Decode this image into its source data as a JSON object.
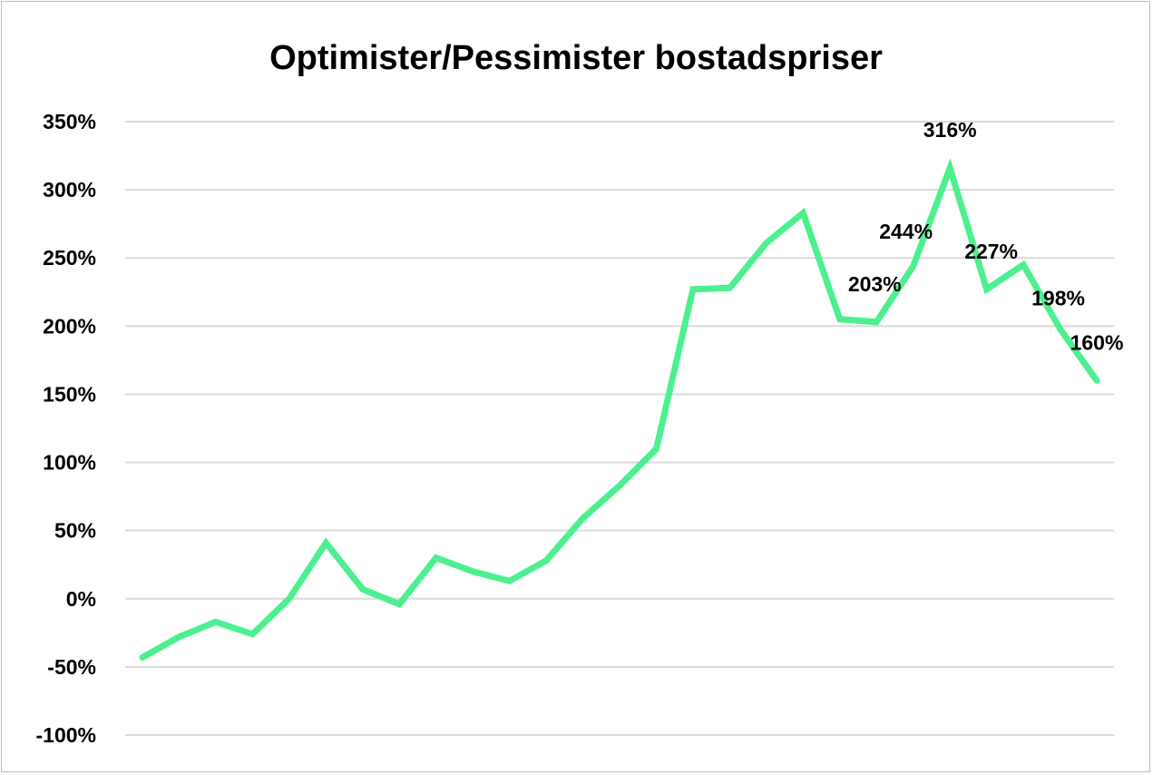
{
  "chart_data": {
    "type": "line",
    "title": "Optimister/Pessimister bostadspriser",
    "xlabel": "",
    "ylabel": "",
    "ylim": [
      -100,
      350
    ],
    "yticks": [
      350,
      300,
      250,
      200,
      150,
      100,
      50,
      0,
      -50,
      -100
    ],
    "ytick_labels": [
      "350%",
      "300%",
      "250%",
      "200%",
      "150%",
      "100%",
      "50%",
      "0%",
      "-50%",
      "-100%"
    ],
    "grid": true,
    "legend": "none",
    "line_color": "#4cf08f",
    "series": [
      {
        "values": [
          -43,
          -28,
          -17,
          -26,
          0,
          41,
          7,
          -4,
          30,
          20,
          13,
          28,
          59,
          83,
          110,
          227,
          228,
          261,
          283,
          205,
          203,
          244,
          316,
          227,
          245,
          198,
          160
        ]
      }
    ],
    "data_labels": [
      {
        "index": 20,
        "text": "203%"
      },
      {
        "index": 21,
        "text": "244%"
      },
      {
        "index": 22,
        "text": "316%"
      },
      {
        "index": 23,
        "text": "227%"
      },
      {
        "index": 25,
        "text": "198%"
      },
      {
        "index": 26,
        "text": "160%"
      }
    ]
  }
}
